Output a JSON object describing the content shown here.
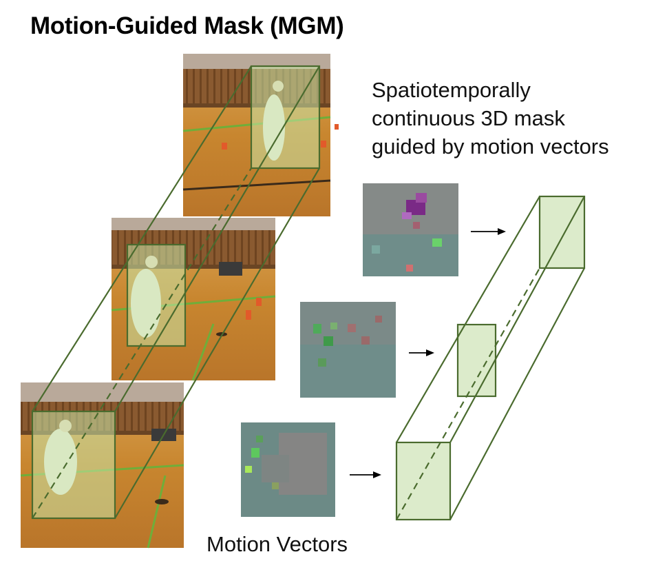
{
  "title": "Motion-Guided Mask (MGM)",
  "description_lines": [
    "Spatiotemporally",
    "continuous 3D mask",
    "guided by motion vectors"
  ],
  "motion_vectors_label": "Motion Vectors",
  "colors": {
    "mask_stroke": "#4a6b2e",
    "mask_fill": "#dcebcb",
    "overlay_fill": "#c8e6a8",
    "floor_wood": "#c8862f",
    "wall_brown": "#8a5a30",
    "mv_background": "#7f8383",
    "arrow": "#000000"
  },
  "icons": [
    "video-frame-image",
    "motion-vector-map-image",
    "right-arrow-icon"
  ]
}
